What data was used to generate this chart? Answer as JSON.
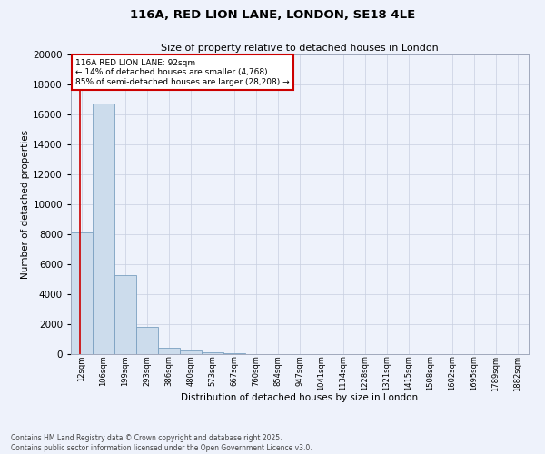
{
  "title": "116A, RED LION LANE, LONDON, SE18 4LE",
  "subtitle": "Size of property relative to detached houses in London",
  "xlabel": "Distribution of detached houses by size in London",
  "ylabel": "Number of detached properties",
  "bar_color": "#ccdcec",
  "bar_edge_color": "#7ba0c0",
  "categories": [
    "12sqm",
    "106sqm",
    "199sqm",
    "293sqm",
    "386sqm",
    "480sqm",
    "573sqm",
    "667sqm",
    "760sqm",
    "854sqm",
    "947sqm",
    "1041sqm",
    "1134sqm",
    "1228sqm",
    "1321sqm",
    "1415sqm",
    "1508sqm",
    "1602sqm",
    "1695sqm",
    "1789sqm",
    "1882sqm"
  ],
  "values": [
    8100,
    16700,
    5300,
    1800,
    430,
    250,
    130,
    50,
    25,
    10,
    5,
    3,
    2,
    1,
    1,
    1,
    0,
    0,
    0,
    0,
    0
  ],
  "ylim": [
    0,
    20000
  ],
  "yticks": [
    0,
    2000,
    4000,
    6000,
    8000,
    10000,
    12000,
    14000,
    16000,
    18000,
    20000
  ],
  "annotation_text": "116A RED LION LANE: 92sqm\n← 14% of detached houses are smaller (4,768)\n85% of semi-detached houses are larger (28,208) →",
  "annotation_border_color": "#cc0000",
  "footer": "Contains HM Land Registry data © Crown copyright and database right 2025.\nContains public sector information licensed under the Open Government Licence v3.0.",
  "background_color": "#eef2fb",
  "grid_color": "#c8cfe0"
}
